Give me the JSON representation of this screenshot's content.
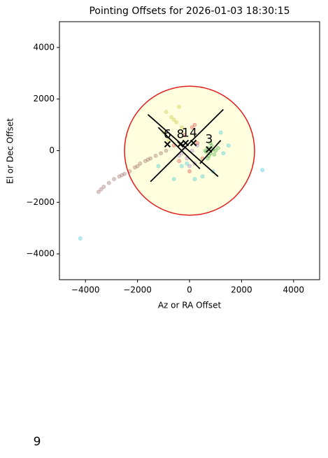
{
  "chart_data": {
    "type": "scatter",
    "title": "Pointing Offsets for 2026-01-03 18:30:15",
    "xlabel": "Az or RA Offset",
    "ylabel": "El or Dec Offset",
    "xlim": [
      -5000,
      5000
    ],
    "ylim": [
      -5000,
      5000
    ],
    "xticks": [
      {
        "value": -4000,
        "label": "−4000"
      },
      {
        "value": -2000,
        "label": "−2000"
      },
      0,
      2000,
      4000
    ],
    "yticks": [
      {
        "value": -4000,
        "label": "−4000"
      },
      {
        "value": -2000,
        "label": "−2000"
      },
      0,
      2000,
      4000
    ],
    "grid": false,
    "series": [
      {
        "color": "#8c564b",
        "x": [
          -3500,
          -3300,
          -3100,
          -2900,
          -2700,
          -2500,
          -2300,
          -2100,
          -1900,
          -1700,
          -1500,
          -1300,
          -1100,
          -900,
          -2600,
          -2000,
          -1600,
          -3400
        ],
        "y": [
          -1600,
          -1400,
          -1250,
          -1100,
          -1000,
          -900,
          -800,
          -650,
          -500,
          -400,
          -300,
          -200,
          -100,
          0,
          -950,
          -600,
          -350,
          -1500
        ]
      },
      {
        "color": "#2ca02c",
        "x": [
          600,
          700,
          800,
          900,
          1000,
          750,
          850,
          650,
          950,
          1100,
          700,
          800
        ],
        "y": [
          0,
          100,
          -100,
          50,
          0,
          -200,
          200,
          -50,
          -150,
          100,
          -300,
          300
        ]
      },
      {
        "color": "#17becf",
        "x": [
          -4200,
          2800,
          1300,
          -600,
          -300,
          500,
          1500,
          -1200,
          900,
          200,
          -100,
          1200
        ],
        "y": [
          -3400,
          -750,
          -100,
          -1100,
          -600,
          -1000,
          200,
          -600,
          -800,
          -1100,
          -500,
          700
        ]
      },
      {
        "color": "#d62728",
        "x": [
          -200,
          100,
          300,
          -400,
          0,
          500,
          -600,
          200
        ],
        "y": [
          600,
          900,
          300,
          -400,
          -800,
          -300,
          200,
          1000
        ]
      },
      {
        "color": "#9467bd",
        "x": [
          -300,
          -100,
          100,
          200,
          -200,
          0,
          -400,
          300
        ],
        "y": [
          -100,
          -300,
          0,
          -500,
          100,
          -600,
          -200,
          200
        ]
      },
      {
        "color": "#bcbd22",
        "x": [
          -900,
          -700,
          -500,
          -300,
          -1000,
          -600,
          -800,
          -400
        ],
        "y": [
          1500,
          1300,
          1100,
          900,
          700,
          1200,
          400,
          1700
        ]
      }
    ],
    "circle": {
      "center": [
        0,
        0
      ],
      "radius": 2500,
      "color": "#e31a1c",
      "fill": "#ffffe0"
    },
    "lines": [
      {
        "x": [
          -1600,
          1100
        ],
        "y": [
          1400,
          -1000
        ]
      },
      {
        "x": [
          -1500,
          1300
        ],
        "y": [
          -1200,
          1600
        ]
      },
      {
        "x": [
          -1200,
          400
        ],
        "y": [
          900,
          -700
        ]
      },
      {
        "x": [
          400,
          1200
        ],
        "y": [
          -500,
          400
        ]
      }
    ],
    "markers": [
      {
        "label": "6",
        "x": -850,
        "y": 250
      },
      {
        "label": "8",
        "x": -350,
        "y": 250
      },
      {
        "label": "1",
        "x": -150,
        "y": 300
      },
      {
        "label": "4",
        "x": 150,
        "y": 300
      },
      {
        "label": "3",
        "x": 750,
        "y": 50
      }
    ],
    "footer_text": "9"
  }
}
